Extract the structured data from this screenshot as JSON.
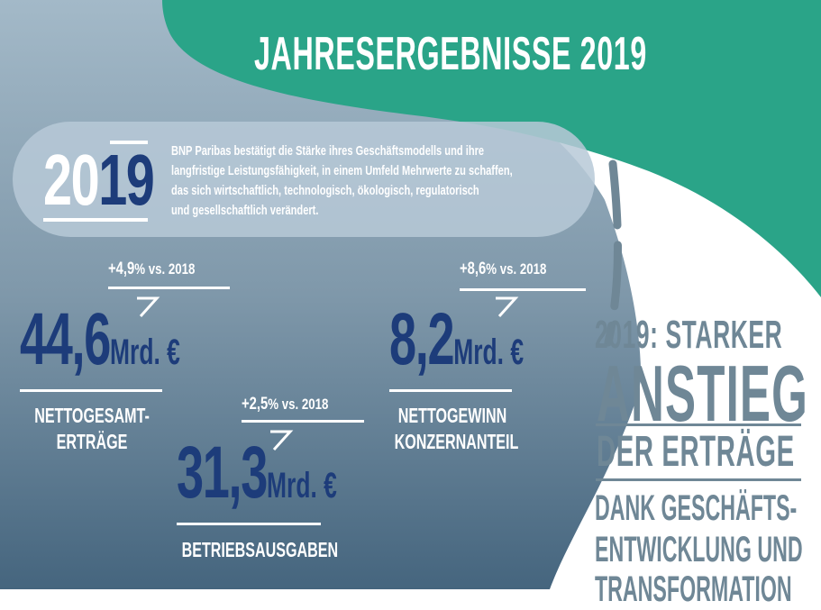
{
  "title": "JAHRESERGEBNISSE 2019",
  "intro": {
    "year_a": "20",
    "year_b": "19",
    "lines": [
      "BNP Paribas bestätigt die Stärke ihres Geschäftsmodells und ihre",
      "langfristige Leistungsfähigkeit,  in einem Umfeld Mehrwerte zu schaffen,",
      "das sich wirtschaftlich, technologisch, ökologisch, regulatorisch",
      "und gesellschaftlich verändert."
    ]
  },
  "kpis": [
    {
      "change": "+4,9",
      "pct": "%",
      "vs": " vs. 2018",
      "value": "44,6",
      "unit": "Mrd. €",
      "label_lines": [
        "NETTOGESAMT-",
        "ERTRÄGE"
      ]
    },
    {
      "change": "+8,6",
      "pct": "%",
      "vs": " vs. 2018",
      "value": "8,2",
      "unit": "Mrd. €",
      "label_lines": [
        "NETTOGEWINN",
        "KONZERNANTEIL"
      ]
    },
    {
      "change": "+2,5",
      "pct": "%",
      "vs": " vs. 2018",
      "value": "31,3",
      "unit": "Mrd. €",
      "label_lines": [
        "BETRIEBSAUSGABEN"
      ]
    }
  ],
  "headline": {
    "line1": "2019: STARKER",
    "line2": "ANSTIEG",
    "line3": "DER ERTRÄGE",
    "line4": "DANK GESCHÄFTS-",
    "line5": "ENTWICKLUNG UND",
    "line6": "TRANSFORMATION"
  },
  "colors": {
    "teal": "#2aa488",
    "slate_light": "#9fb5c5",
    "slate_dark": "#4b6c84",
    "navy": "#1d3c7a",
    "gray_text": "#6f8796"
  }
}
